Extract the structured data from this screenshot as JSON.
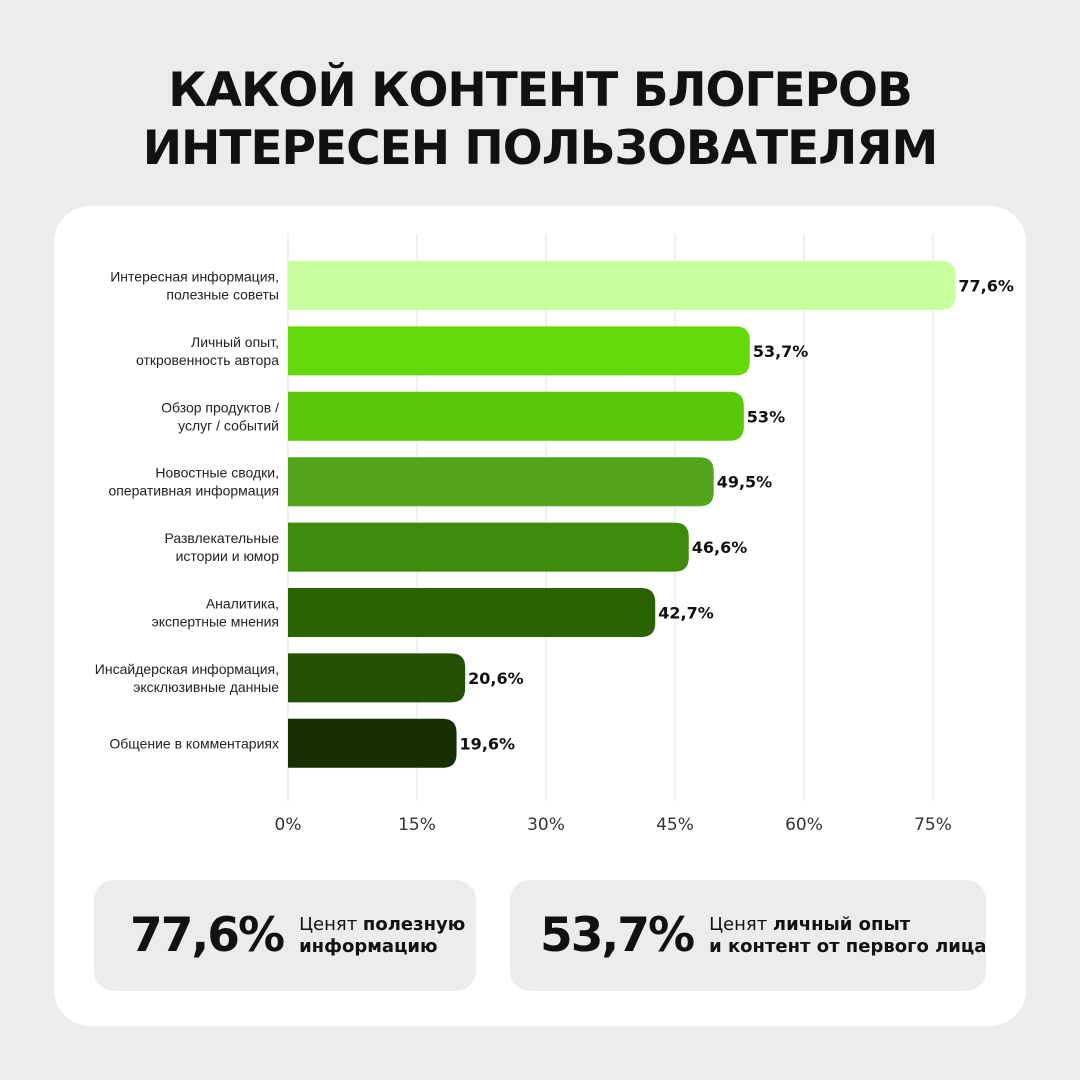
{
  "title": {
    "line1": "КАКОЙ КОНТЕНТ БЛОГЕРОВ",
    "line2": "ИНТЕРЕСЕН ПОЛЬЗОВАТЕЛЯМ"
  },
  "chart_data": {
    "type": "bar",
    "orientation": "horizontal",
    "title": "",
    "xlabel": "",
    "ylabel": "",
    "xlim": [
      0,
      75
    ],
    "x_ticks": [
      0,
      15,
      30,
      45,
      60,
      75
    ],
    "x_tick_labels": [
      "0%",
      "15%",
      "30%",
      "45%",
      "60%",
      "75%"
    ],
    "grid": "vertical",
    "categories": [
      [
        "Интересная информация,",
        "полезные советы"
      ],
      [
        "Личный опыт,",
        "откровенность автора"
      ],
      [
        "Обзор продуктов /",
        "услуг / событий"
      ],
      [
        "Новостные сводки,",
        "оперативная информация"
      ],
      [
        "Развлекательные",
        "истории и юмор"
      ],
      [
        "Аналитика,",
        "экспертные мнения"
      ],
      [
        "Инсайдерская информация,",
        "эксклюзивные данные"
      ],
      [
        "Общение в комментариях"
      ]
    ],
    "values": [
      77.6,
      53.7,
      53,
      49.5,
      46.6,
      42.7,
      20.6,
      19.6
    ],
    "value_labels": [
      "77,6%",
      "53,7%",
      "53%",
      "49,5%",
      "46,6%",
      "42,7%",
      "20,6%",
      "19,6%"
    ],
    "colors": [
      "#c8ff9e",
      "#63da0a",
      "#58c808",
      "#52a41a",
      "#3e8a0c",
      "#2a6200",
      "#245004",
      "#162f00"
    ]
  },
  "stats": [
    {
      "value": "77,6%",
      "text_line1_normal": "Ценят ",
      "text_line1_bold": "полезную",
      "text_line2_normal": "",
      "text_line2_bold": "информацию"
    },
    {
      "value": "53,7%",
      "text_line1_normal": "Ценят ",
      "text_line1_bold": "личный опыт",
      "text_line2_normal": "",
      "text_line2_bold": "и контент от первого лица"
    }
  ]
}
